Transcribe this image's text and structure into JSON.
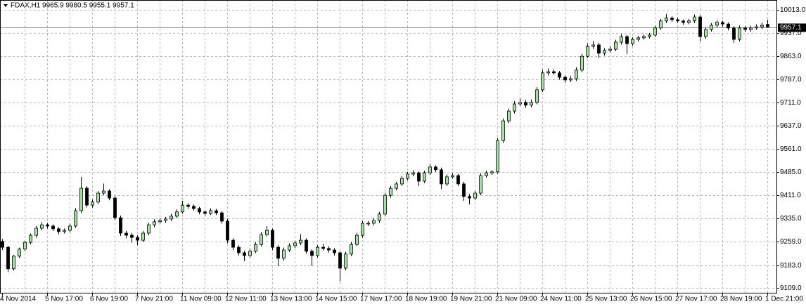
{
  "chart_data": {
    "type": "candlestick",
    "title": "FDAX,H1  9965.9 9980.5 9955.1 9957.1",
    "up_color": "#a8e0a8",
    "down_color": "#000000",
    "wick_color": "#000000",
    "grid": true,
    "current_price": 9957.1,
    "ylim": [
      9090.7,
      10045
    ],
    "yticks": [
      {
        "value": 10013,
        "label": "10013.0"
      },
      {
        "value": 9937,
        "label": "9937.0"
      },
      {
        "value": 9863,
        "label": "9863.0"
      },
      {
        "value": 9787,
        "label": "9787.0"
      },
      {
        "value": 9711,
        "label": "9711.0"
      },
      {
        "value": 9637,
        "label": "9637.0"
      },
      {
        "value": 9561,
        "label": "9561.0"
      },
      {
        "value": 9485,
        "label": "9485.0"
      },
      {
        "value": 9411,
        "label": "9411.0"
      },
      {
        "value": 9335,
        "label": "9335.0"
      },
      {
        "value": 9259,
        "label": "9259.0"
      },
      {
        "value": 9183,
        "label": "9183.0"
      },
      {
        "value": 9109,
        "label": "9109.0"
      }
    ],
    "categories": [
      "4 Nov 2014",
      null,
      null,
      null,
      null,
      null,
      null,
      null,
      "5 Nov 17:00",
      null,
      null,
      null,
      null,
      null,
      null,
      null,
      "6 Nov 19:00",
      null,
      null,
      null,
      null,
      null,
      null,
      null,
      "7 Nov 21:00",
      null,
      null,
      null,
      null,
      null,
      null,
      null,
      "11 Nov 09:00",
      null,
      null,
      null,
      null,
      null,
      null,
      null,
      "12 Nov 11:00",
      null,
      null,
      null,
      null,
      null,
      null,
      null,
      "13 Nov 13:00",
      null,
      null,
      null,
      null,
      null,
      null,
      null,
      "14 Nov 15:00",
      null,
      null,
      null,
      null,
      null,
      null,
      null,
      "17 Nov 17:00",
      null,
      null,
      null,
      null,
      null,
      null,
      null,
      "18 Nov 19:00",
      null,
      null,
      null,
      null,
      null,
      null,
      null,
      "19 Nov 21:00",
      null,
      null,
      null,
      null,
      null,
      null,
      null,
      "21 Nov 09:00",
      null,
      null,
      null,
      null,
      null,
      null,
      null,
      "24 Nov 11:00",
      null,
      null,
      null,
      null,
      null,
      null,
      null,
      "25 Nov 13:00",
      null,
      null,
      null,
      null,
      null,
      null,
      null,
      "26 Nov 15:00",
      null,
      null,
      null,
      null,
      null,
      null,
      null,
      "27 Nov 17:00",
      null,
      null,
      null,
      null,
      null,
      null,
      null,
      "28 Nov 19:00",
      null,
      null,
      null,
      null,
      null,
      null,
      null,
      "1 Dec 21:00"
    ],
    "ohlc": [
      [
        9260,
        9268,
        9232,
        9241
      ],
      [
        9241,
        9246,
        9160,
        9171
      ],
      [
        9171,
        9216,
        9165,
        9212
      ],
      [
        9212,
        9240,
        9206,
        9235
      ],
      [
        9235,
        9262,
        9228,
        9257
      ],
      [
        9257,
        9286,
        9250,
        9280
      ],
      [
        9280,
        9310,
        9272,
        9303
      ],
      [
        9303,
        9322,
        9296,
        9314
      ],
      [
        9314,
        9320,
        9302,
        9310
      ],
      [
        9310,
        9316,
        9294,
        9301
      ],
      [
        9301,
        9306,
        9284,
        9292
      ],
      [
        9292,
        9302,
        9286,
        9296
      ],
      [
        9296,
        9318,
        9290,
        9310
      ],
      [
        9310,
        9368,
        9304,
        9360
      ],
      [
        9360,
        9470,
        9352,
        9433
      ],
      [
        9433,
        9440,
        9370,
        9378
      ],
      [
        9378,
        9396,
        9370,
        9388
      ],
      [
        9388,
        9424,
        9382,
        9417
      ],
      [
        9417,
        9448,
        9410,
        9424
      ],
      [
        9424,
        9430,
        9394,
        9401
      ],
      [
        9401,
        9408,
        9330,
        9337
      ],
      [
        9337,
        9344,
        9278,
        9287
      ],
      [
        9287,
        9294,
        9270,
        9280
      ],
      [
        9280,
        9288,
        9256,
        9273
      ],
      [
        9273,
        9280,
        9248,
        9264
      ],
      [
        9264,
        9294,
        9258,
        9287
      ],
      [
        9287,
        9320,
        9280,
        9314
      ],
      [
        9314,
        9332,
        9306,
        9324
      ],
      [
        9324,
        9336,
        9318,
        9328
      ],
      [
        9328,
        9340,
        9320,
        9333
      ],
      [
        9333,
        9350,
        9326,
        9342
      ],
      [
        9342,
        9364,
        9336,
        9356
      ],
      [
        9356,
        9392,
        9350,
        9378
      ],
      [
        9378,
        9384,
        9366,
        9374
      ],
      [
        9374,
        9380,
        9360,
        9367
      ],
      [
        9367,
        9372,
        9348,
        9356
      ],
      [
        9356,
        9362,
        9344,
        9351
      ],
      [
        9351,
        9368,
        9346,
        9360
      ],
      [
        9360,
        9366,
        9346,
        9353
      ],
      [
        9353,
        9358,
        9318,
        9326
      ],
      [
        9326,
        9334,
        9254,
        9264
      ],
      [
        9264,
        9270,
        9232,
        9241
      ],
      [
        9241,
        9248,
        9214,
        9223
      ],
      [
        9223,
        9230,
        9196,
        9214
      ],
      [
        9214,
        9236,
        9208,
        9228
      ],
      [
        9228,
        9258,
        9222,
        9250
      ],
      [
        9250,
        9290,
        9244,
        9282
      ],
      [
        9282,
        9310,
        9276,
        9296
      ],
      [
        9296,
        9302,
        9232,
        9241
      ],
      [
        9241,
        9248,
        9180,
        9205
      ],
      [
        9205,
        9240,
        9198,
        9232
      ],
      [
        9232,
        9254,
        9226,
        9246
      ],
      [
        9246,
        9262,
        9238,
        9255
      ],
      [
        9255,
        9284,
        9248,
        9264
      ],
      [
        9264,
        9270,
        9220,
        9228
      ],
      [
        9228,
        9234,
        9180,
        9214
      ],
      [
        9214,
        9248,
        9208,
        9241
      ],
      [
        9241,
        9252,
        9230,
        9237
      ],
      [
        9237,
        9244,
        9224,
        9232
      ],
      [
        9232,
        9238,
        9214,
        9223
      ],
      [
        9223,
        9228,
        9130,
        9173
      ],
      [
        9173,
        9226,
        9166,
        9219
      ],
      [
        9219,
        9258,
        9212,
        9250
      ],
      [
        9250,
        9288,
        9244,
        9280
      ],
      [
        9280,
        9326,
        9272,
        9319
      ],
      [
        9319,
        9326,
        9310,
        9319
      ],
      [
        9319,
        9336,
        9312,
        9328
      ],
      [
        9328,
        9356,
        9320,
        9349
      ],
      [
        9349,
        9418,
        9342,
        9410
      ],
      [
        9410,
        9440,
        9402,
        9433
      ],
      [
        9433,
        9454,
        9426,
        9447
      ],
      [
        9447,
        9472,
        9440,
        9465
      ],
      [
        9465,
        9486,
        9458,
        9479
      ],
      [
        9479,
        9492,
        9472,
        9483
      ],
      [
        9483,
        9488,
        9440,
        9456
      ],
      [
        9456,
        9490,
        9450,
        9483
      ],
      [
        9483,
        9512,
        9476,
        9502
      ],
      [
        9502,
        9508,
        9486,
        9493
      ],
      [
        9493,
        9500,
        9430,
        9447
      ],
      [
        9447,
        9478,
        9440,
        9470
      ],
      [
        9470,
        9482,
        9464,
        9474
      ],
      [
        9474,
        9480,
        9440,
        9447
      ],
      [
        9447,
        9454,
        9392,
        9406
      ],
      [
        9406,
        9414,
        9380,
        9401
      ],
      [
        9401,
        9424,
        9394,
        9417
      ],
      [
        9417,
        9482,
        9410,
        9474
      ],
      [
        9474,
        9490,
        9468,
        9483
      ],
      [
        9483,
        9492,
        9476,
        9486
      ],
      [
        9486,
        9596,
        9480,
        9588
      ],
      [
        9588,
        9660,
        9580,
        9652
      ],
      [
        9652,
        9692,
        9644,
        9684
      ],
      [
        9684,
        9716,
        9676,
        9707
      ],
      [
        9707,
        9724,
        9700,
        9712
      ],
      [
        9712,
        9720,
        9694,
        9703
      ],
      [
        9703,
        9722,
        9696,
        9712
      ],
      [
        9712,
        9762,
        9706,
        9753
      ],
      [
        9753,
        9818,
        9746,
        9808
      ],
      [
        9808,
        9822,
        9800,
        9812
      ],
      [
        9812,
        9820,
        9802,
        9808
      ],
      [
        9808,
        9814,
        9786,
        9794
      ],
      [
        9794,
        9800,
        9776,
        9785
      ],
      [
        9785,
        9798,
        9778,
        9789
      ],
      [
        9789,
        9826,
        9782,
        9817
      ],
      [
        9817,
        9870,
        9810,
        9862
      ],
      [
        9862,
        9904,
        9856,
        9894
      ],
      [
        9894,
        9912,
        9886,
        9899
      ],
      [
        9899,
        9906,
        9856,
        9872
      ],
      [
        9872,
        9888,
        9864,
        9881
      ],
      [
        9881,
        9894,
        9874,
        9885
      ],
      [
        9885,
        9916,
        9878,
        9908
      ],
      [
        9908,
        9934,
        9900,
        9926
      ],
      [
        9926,
        9932,
        9870,
        9903
      ],
      [
        9903,
        9924,
        9896,
        9917
      ],
      [
        9917,
        9928,
        9910,
        9922
      ],
      [
        9922,
        9932,
        9916,
        9926
      ],
      [
        9926,
        9938,
        9920,
        9931
      ],
      [
        9931,
        9962,
        9924,
        9954
      ],
      [
        9954,
        9984,
        9948,
        9977
      ],
      [
        9977,
        10000,
        9970,
        9986
      ],
      [
        9986,
        9992,
        9974,
        9981
      ],
      [
        9981,
        9988,
        9970,
        9977
      ],
      [
        9977,
        9982,
        9964,
        9972
      ],
      [
        9972,
        9984,
        9966,
        9977
      ],
      [
        9977,
        9998,
        9970,
        9990
      ],
      [
        9990,
        9996,
        9910,
        9926
      ],
      [
        9926,
        9956,
        9918,
        9949
      ],
      [
        9949,
        9970,
        9942,
        9963
      ],
      [
        9963,
        9980,
        9956,
        9972
      ],
      [
        9972,
        9978,
        9958,
        9967
      ],
      [
        9967,
        9972,
        9946,
        9954
      ],
      [
        9954,
        9960,
        9906,
        9917
      ],
      [
        9917,
        9962,
        9910,
        9954
      ],
      [
        9954,
        9960,
        9940,
        9949
      ],
      [
        9949,
        9962,
        9942,
        9954
      ],
      [
        9954,
        9966,
        9948,
        9958
      ],
      [
        9958,
        9972,
        9950,
        9963
      ],
      [
        9965.9,
        9980.5,
        9955.1,
        9957.1
      ]
    ]
  }
}
